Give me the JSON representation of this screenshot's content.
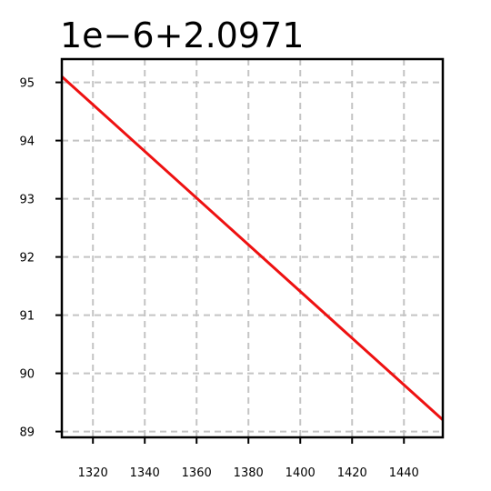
{
  "chart_data": {
    "type": "line",
    "title": "",
    "offset_text": "1e−6+2.0971",
    "xlabel": "",
    "ylabel": "",
    "xlim": [
      1308,
      1455
    ],
    "ylim": [
      88.9,
      95.4
    ],
    "x_ticks": [
      1320,
      1340,
      1360,
      1380,
      1400,
      1420,
      1440
    ],
    "y_ticks": [
      89,
      90,
      91,
      92,
      93,
      94,
      95
    ],
    "grid": true,
    "legend": "none",
    "series": [
      {
        "color": "#ee1111",
        "x": [
          1308,
          1455
        ],
        "y": [
          95.1,
          89.2
        ]
      }
    ]
  }
}
